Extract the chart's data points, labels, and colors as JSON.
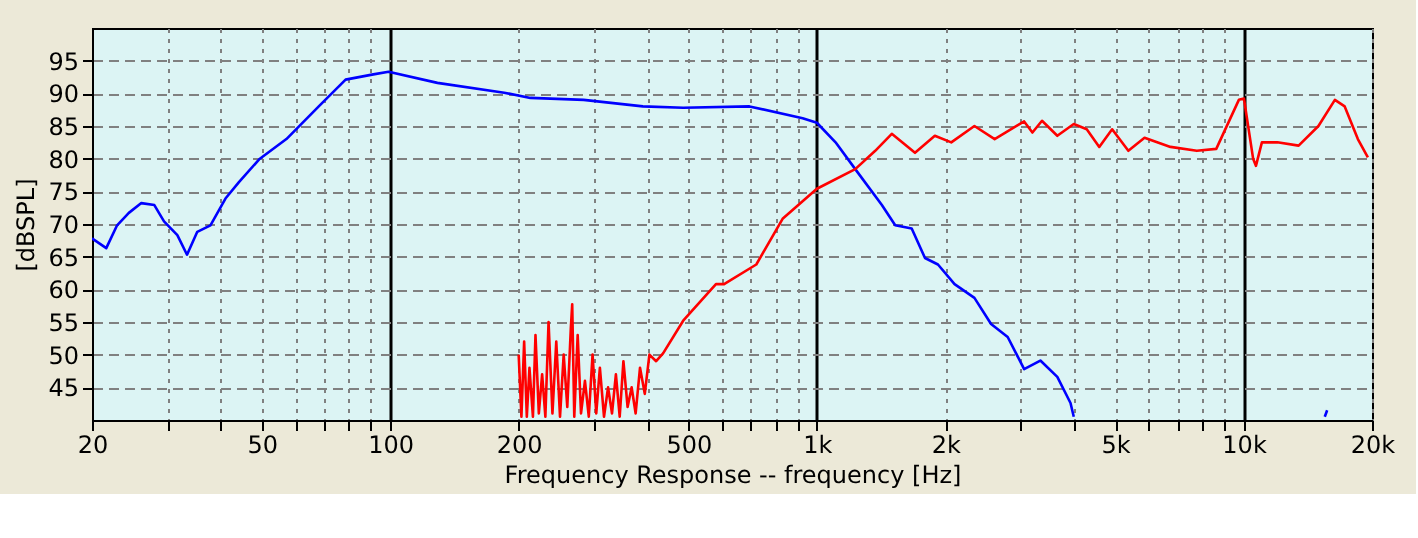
{
  "chart_data": {
    "type": "line",
    "xlabel": "Frequency Response -- frequency [Hz]",
    "ylabel": "[dBSPL]",
    "log": "x",
    "xlim": [
      20,
      20000
    ],
    "ylim": [
      40,
      100
    ],
    "xticks": [
      20,
      {
        "value": 30,
        "label": null
      },
      {
        "value": 40,
        "label": null
      },
      50,
      {
        "value": 60,
        "label": null
      },
      {
        "value": 70,
        "label": null
      },
      {
        "value": 80,
        "label": null
      },
      {
        "value": 90,
        "label": null
      },
      100,
      200,
      {
        "value": 300,
        "label": null
      },
      {
        "value": 400,
        "label": null
      },
      500,
      {
        "value": 600,
        "label": null
      },
      {
        "value": 700,
        "label": null
      },
      {
        "value": 800,
        "label": null
      },
      {
        "value": 900,
        "label": null
      },
      {
        "value": 1000,
        "label": "1k"
      },
      {
        "value": 2000,
        "label": "2k"
      },
      {
        "value": 3000,
        "label": null
      },
      {
        "value": 4000,
        "label": null
      },
      {
        "value": 5000,
        "label": "5k"
      },
      {
        "value": 6000,
        "label": null
      },
      {
        "value": 7000,
        "label": null
      },
      {
        "value": 8000,
        "label": null
      },
      {
        "value": 9000,
        "label": null
      },
      {
        "value": 10000,
        "label": "10k"
      },
      {
        "value": 20000,
        "label": "20k"
      }
    ],
    "yticks": [
      45,
      50,
      55,
      60,
      65,
      70,
      75,
      80,
      85,
      90,
      95
    ],
    "grid": true,
    "marker": "none",
    "line_style": "solid",
    "series": [
      {
        "color": "#0000ff",
        "x": [
          20,
          21.6,
          22.9,
          24.4,
          26.1,
          28.0,
          29.5,
          31.7,
          33.4,
          35.3,
          37.9,
          41.1,
          44.2,
          49.3,
          57.1,
          68.0,
          78.6,
          91.3,
          99.1,
          129,
          185,
          213,
          284,
          391,
          486,
          695,
          926,
          1000,
          1106,
          1230,
          1420,
          1526,
          1668,
          1792,
          1922,
          2102,
          2340,
          2560,
          2800,
          3060,
          3340,
          3660,
          3930,
          4000
        ],
        "values": [
          67.8,
          66.3,
          69.8,
          71.7,
          73.2,
          72.9,
          70.4,
          68.3,
          65.3,
          68.8,
          69.8,
          73.9,
          76.4,
          79.9,
          83.0,
          88.0,
          92.1,
          92.9,
          93.3,
          91.6,
          90.1,
          89.3,
          89.0,
          88.0,
          87.8,
          88.0,
          86.2,
          85.5,
          82.5,
          78.4,
          72.9,
          69.8,
          69.3,
          64.8,
          63.8,
          60.8,
          58.7,
          54.7,
          52.7,
          47.8,
          49.1,
          46.6,
          42.6,
          40.5
        ]
      },
      {
        "color": "#0000ff",
        "x": [
          15500,
          15700
        ],
        "values": [
          40.5,
          41.5
        ]
      },
      {
        "color": "#ff0000",
        "x": [
          200,
          203,
          206,
          209,
          212,
          216,
          219,
          223,
          227,
          231,
          235,
          240,
          245,
          250,
          255,
          260,
          265,
          267,
          270,
          275,
          280,
          286,
          292,
          298,
          304,
          310,
          317,
          324,
          331,
          338,
          345,
          352,
          360,
          368,
          376,
          385,
          395,
          405,
          420,
          436,
          486,
          580,
          606,
          721,
          831,
          1000,
          1230,
          1370,
          1498,
          1698,
          1890,
          2065,
          2340,
          2610,
          3060,
          3200,
          3370,
          3660,
          4000,
          4290,
          4590,
          4920,
          5370,
          5860,
          6740,
          7770,
          8630,
          9750,
          10020,
          10530,
          10690,
          11040,
          12000,
          13460,
          14980,
          16370,
          17260,
          18530,
          19560
        ],
        "values": [
          50,
          40.5,
          52,
          40.5,
          48,
          40.5,
          53,
          41,
          47,
          40.5,
          55,
          41,
          52,
          40.5,
          50,
          42,
          54,
          57.7,
          40.5,
          53,
          41,
          46,
          40.5,
          50,
          41,
          48,
          40.5,
          45,
          41,
          47,
          40.5,
          49,
          42,
          45,
          41,
          48,
          44,
          50,
          49,
          50.2,
          55.2,
          60.8,
          60.8,
          63.8,
          70.8,
          75.4,
          78.4,
          81.2,
          83.8,
          80.9,
          83.5,
          82.5,
          85.0,
          83.0,
          85.7,
          84.0,
          85.8,
          83.5,
          85.3,
          84.5,
          81.8,
          84.5,
          81.2,
          83.2,
          81.8,
          81.2,
          81.5,
          89.0,
          89.2,
          80.0,
          78.9,
          82.5,
          82.5,
          82.0,
          85.0,
          89.0,
          88.0,
          83.0,
          80.2
        ]
      }
    ]
  }
}
